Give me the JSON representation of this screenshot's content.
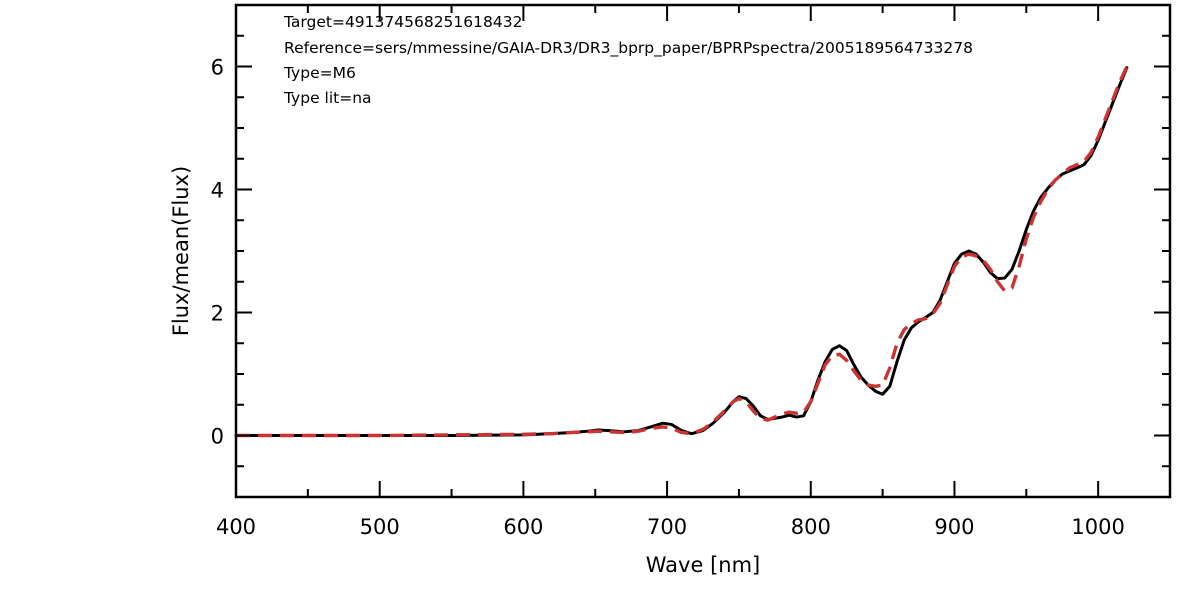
{
  "chart_data": {
    "type": "line",
    "xlabel": "Wave [nm]",
    "ylabel": "Flux/mean(Flux)",
    "xlim": [
      400,
      1050
    ],
    "ylim": [
      -1,
      7
    ],
    "x_ticks": [
      400,
      500,
      600,
      700,
      800,
      900,
      1000
    ],
    "y_ticks": [
      0,
      2,
      4,
      6
    ],
    "x_tick_labels": [
      "400",
      "500",
      "600",
      "700",
      "800",
      "900",
      "1000"
    ],
    "y_tick_labels": [
      "0",
      "2",
      "4",
      "6"
    ],
    "grid": false,
    "annotations": [
      "Target=491374568251618432",
      "Reference=sers/mmessine/GAIA-DR3/DR3_bprp_paper/BPRPspectra/2005189564733278",
      "Type=M6",
      "Type lit=na"
    ],
    "series": [
      {
        "style": "solid",
        "color": "#000000",
        "x": [
          400,
          450,
          500,
          550,
          600,
          620,
          635,
          645,
          652,
          660,
          670,
          680,
          690,
          697,
          703,
          710,
          717,
          725,
          732,
          740,
          746,
          750,
          755,
          760,
          765,
          770,
          775,
          780,
          785,
          790,
          795,
          800,
          805,
          810,
          815,
          820,
          825,
          830,
          835,
          840,
          845,
          850,
          855,
          860,
          865,
          870,
          875,
          880,
          885,
          890,
          895,
          900,
          905,
          910,
          915,
          920,
          925,
          930,
          935,
          940,
          945,
          950,
          955,
          960,
          965,
          970,
          975,
          980,
          985,
          990,
          995,
          1000,
          1005,
          1010,
          1015,
          1020
        ],
        "y": [
          0,
          0,
          0,
          0,
          0.01,
          0.03,
          0.05,
          0.07,
          0.09,
          0.08,
          0.06,
          0.08,
          0.15,
          0.2,
          0.18,
          0.08,
          0.03,
          0.08,
          0.2,
          0.38,
          0.55,
          0.63,
          0.6,
          0.48,
          0.32,
          0.26,
          0.28,
          0.3,
          0.33,
          0.3,
          0.32,
          0.55,
          0.9,
          1.2,
          1.4,
          1.46,
          1.38,
          1.15,
          0.95,
          0.82,
          0.72,
          0.67,
          0.8,
          1.2,
          1.55,
          1.75,
          1.85,
          1.92,
          2.0,
          2.2,
          2.5,
          2.8,
          2.95,
          3.0,
          2.95,
          2.82,
          2.65,
          2.55,
          2.56,
          2.7,
          3.0,
          3.35,
          3.65,
          3.87,
          4.02,
          4.15,
          4.25,
          4.3,
          4.35,
          4.4,
          4.55,
          4.8,
          5.1,
          5.4,
          5.7,
          5.98
        ]
      },
      {
        "style": "dashed",
        "color": "#cc3333",
        "x": [
          400,
          450,
          500,
          550,
          600,
          620,
          635,
          645,
          652,
          660,
          670,
          680,
          690,
          697,
          703,
          710,
          717,
          725,
          732,
          740,
          746,
          750,
          755,
          760,
          765,
          770,
          775,
          780,
          785,
          790,
          795,
          800,
          805,
          810,
          815,
          820,
          825,
          830,
          835,
          840,
          845,
          850,
          855,
          860,
          865,
          870,
          875,
          880,
          885,
          890,
          895,
          900,
          905,
          910,
          915,
          920,
          925,
          930,
          935,
          940,
          945,
          950,
          955,
          960,
          965,
          970,
          975,
          980,
          985,
          990,
          995,
          1000,
          1005,
          1010,
          1015,
          1020
        ],
        "y": [
          0,
          0,
          0,
          0.01,
          0.02,
          0.03,
          0.05,
          0.06,
          0.07,
          0.06,
          0.05,
          0.07,
          0.12,
          0.14,
          0.12,
          0.05,
          0.03,
          0.1,
          0.22,
          0.4,
          0.55,
          0.6,
          0.55,
          0.4,
          0.28,
          0.25,
          0.3,
          0.35,
          0.38,
          0.36,
          0.38,
          0.55,
          0.85,
          1.15,
          1.3,
          1.32,
          1.22,
          1.05,
          0.9,
          0.82,
          0.8,
          0.82,
          1.1,
          1.5,
          1.72,
          1.82,
          1.88,
          1.9,
          1.98,
          2.15,
          2.45,
          2.75,
          2.9,
          2.95,
          2.92,
          2.85,
          2.7,
          2.5,
          2.35,
          2.4,
          2.75,
          3.2,
          3.55,
          3.8,
          4.0,
          4.15,
          4.25,
          4.35,
          4.4,
          4.45,
          4.6,
          4.85,
          5.15,
          5.45,
          5.75,
          6.0
        ]
      }
    ]
  }
}
